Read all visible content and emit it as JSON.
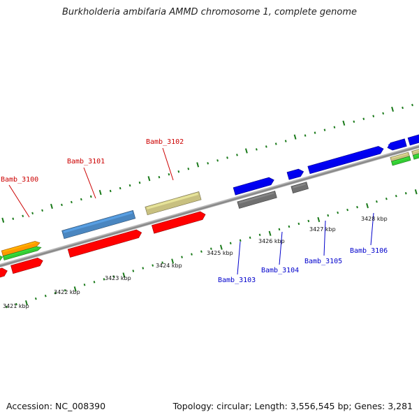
{
  "title": "Burkholderia ambifaria AMMD chromosome 1, complete genome",
  "footer": {
    "accession": "Accession: NC_008390",
    "topology": "Topology: circular; Length: 3,556,545 bp; Genes: 3,281"
  },
  "colors": {
    "backbone": "#8a8a8a",
    "tick": "#1a7a1a",
    "red": "#ff0000",
    "blue": "#0000ee",
    "steel": "#4a86c0",
    "khaki": "#c8c080",
    "gray": "#707070",
    "orange": "#ff9900",
    "green": "#33cc33",
    "label_top": "#cc0000",
    "label_bottom": "#0000cc"
  },
  "scale_labels": [
    "3421 kbp",
    "3422 kbp",
    "3423 kbp",
    "3424 kbp",
    "3425 kbp",
    "3426 kbp",
    "3427 kbp",
    "3428 kbp"
  ],
  "gene_labels_top": [
    "Bamb_3100",
    "Bamb_3101",
    "Bamb_3102"
  ],
  "gene_labels_bottom": [
    "Bamb_3103",
    "Bamb_3104",
    "Bamb_3105",
    "Bamb_3106"
  ]
}
